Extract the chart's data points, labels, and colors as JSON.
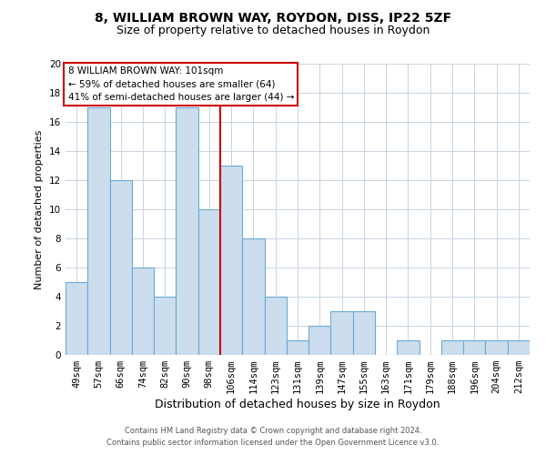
{
  "title1": "8, WILLIAM BROWN WAY, ROYDON, DISS, IP22 5ZF",
  "title2": "Size of property relative to detached houses in Roydon",
  "xlabel": "Distribution of detached houses by size in Roydon",
  "ylabel": "Number of detached properties",
  "categories": [
    "49sqm",
    "57sqm",
    "66sqm",
    "74sqm",
    "82sqm",
    "90sqm",
    "98sqm",
    "106sqm",
    "114sqm",
    "123sqm",
    "131sqm",
    "139sqm",
    "147sqm",
    "155sqm",
    "163sqm",
    "171sqm",
    "179sqm",
    "188sqm",
    "196sqm",
    "204sqm",
    "212sqm"
  ],
  "values": [
    5,
    17,
    12,
    6,
    4,
    17,
    10,
    13,
    8,
    4,
    1,
    2,
    3,
    3,
    0,
    1,
    0,
    1,
    1,
    1,
    1
  ],
  "bar_color": "#ccdded",
  "bar_edge_color": "#6aaad4",
  "bar_width": 1.0,
  "vline_x": 6.5,
  "vline_color": "#cc0000",
  "ylim": [
    0,
    20
  ],
  "yticks": [
    0,
    2,
    4,
    6,
    8,
    10,
    12,
    14,
    16,
    18,
    20
  ],
  "grid_color": "#c8d4e0",
  "annotation_title": "8 WILLIAM BROWN WAY: 101sqm",
  "annotation_line1": "← 59% of detached houses are smaller (64)",
  "annotation_line2": "41% of semi-detached houses are larger (44) →",
  "annotation_box_color": "#ffffff",
  "annotation_box_edge": "#cc0000",
  "footnote1": "Contains HM Land Registry data © Crown copyright and database right 2024.",
  "footnote2": "Contains public sector information licensed under the Open Government Licence v3.0.",
  "background_color": "#ffffff",
  "title1_fontsize": 10,
  "title2_fontsize": 9,
  "xlabel_fontsize": 9,
  "ylabel_fontsize": 8,
  "tick_fontsize": 7.5,
  "annot_fontsize": 7.5,
  "footnote_fontsize": 6.0
}
